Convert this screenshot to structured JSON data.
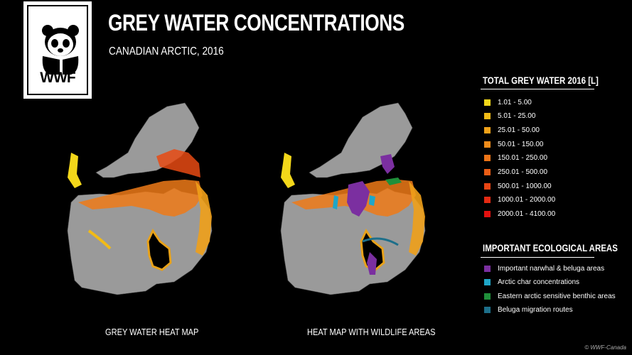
{
  "logo": {
    "text": "WWF"
  },
  "header": {
    "title": "GREY WATER CONCENTRATIONS",
    "subtitle": "CANADIAN ARCTIC, 2016"
  },
  "maps": {
    "left_label": "GREY WATER HEAT MAP",
    "right_label": "HEAT MAP WITH WILDLIFE AREAS"
  },
  "legend_grey": {
    "title": "TOTAL GREY WATER 2016 [L]",
    "items": [
      {
        "label": "1.01 - 5.00",
        "color": "#f3d71a"
      },
      {
        "label": "5.01 - 25.00",
        "color": "#f2bb16"
      },
      {
        "label": "25.01 - 50.00",
        "color": "#f1a219"
      },
      {
        "label": "50.01 - 150.00",
        "color": "#ee8b1a"
      },
      {
        "label": "150.01 - 250.00",
        "color": "#ec7417"
      },
      {
        "label": "250.01 - 500.00",
        "color": "#ea5d15"
      },
      {
        "label": "500.01 - 1000.00",
        "color": "#e84513"
      },
      {
        "label": "1000.01 - 2000.00",
        "color": "#e52a12"
      },
      {
        "label": "2000.01 - 4100.00",
        "color": "#e3100f"
      }
    ]
  },
  "legend_eco": {
    "title": "IMPORTANT ECOLOGICAL AREAS",
    "items": [
      {
        "label": "Important narwhal  & beluga areas",
        "color": "#7b2fa0"
      },
      {
        "label": "Arctic char concentrations",
        "color": "#1fa6c8"
      },
      {
        "label": "Eastern arctic sensitive benthic areas",
        "color": "#1f8f3a"
      },
      {
        "label": "Beluga migration routes",
        "color": "#1d6f8a"
      }
    ]
  },
  "copyright": "© WWF-Canada"
}
